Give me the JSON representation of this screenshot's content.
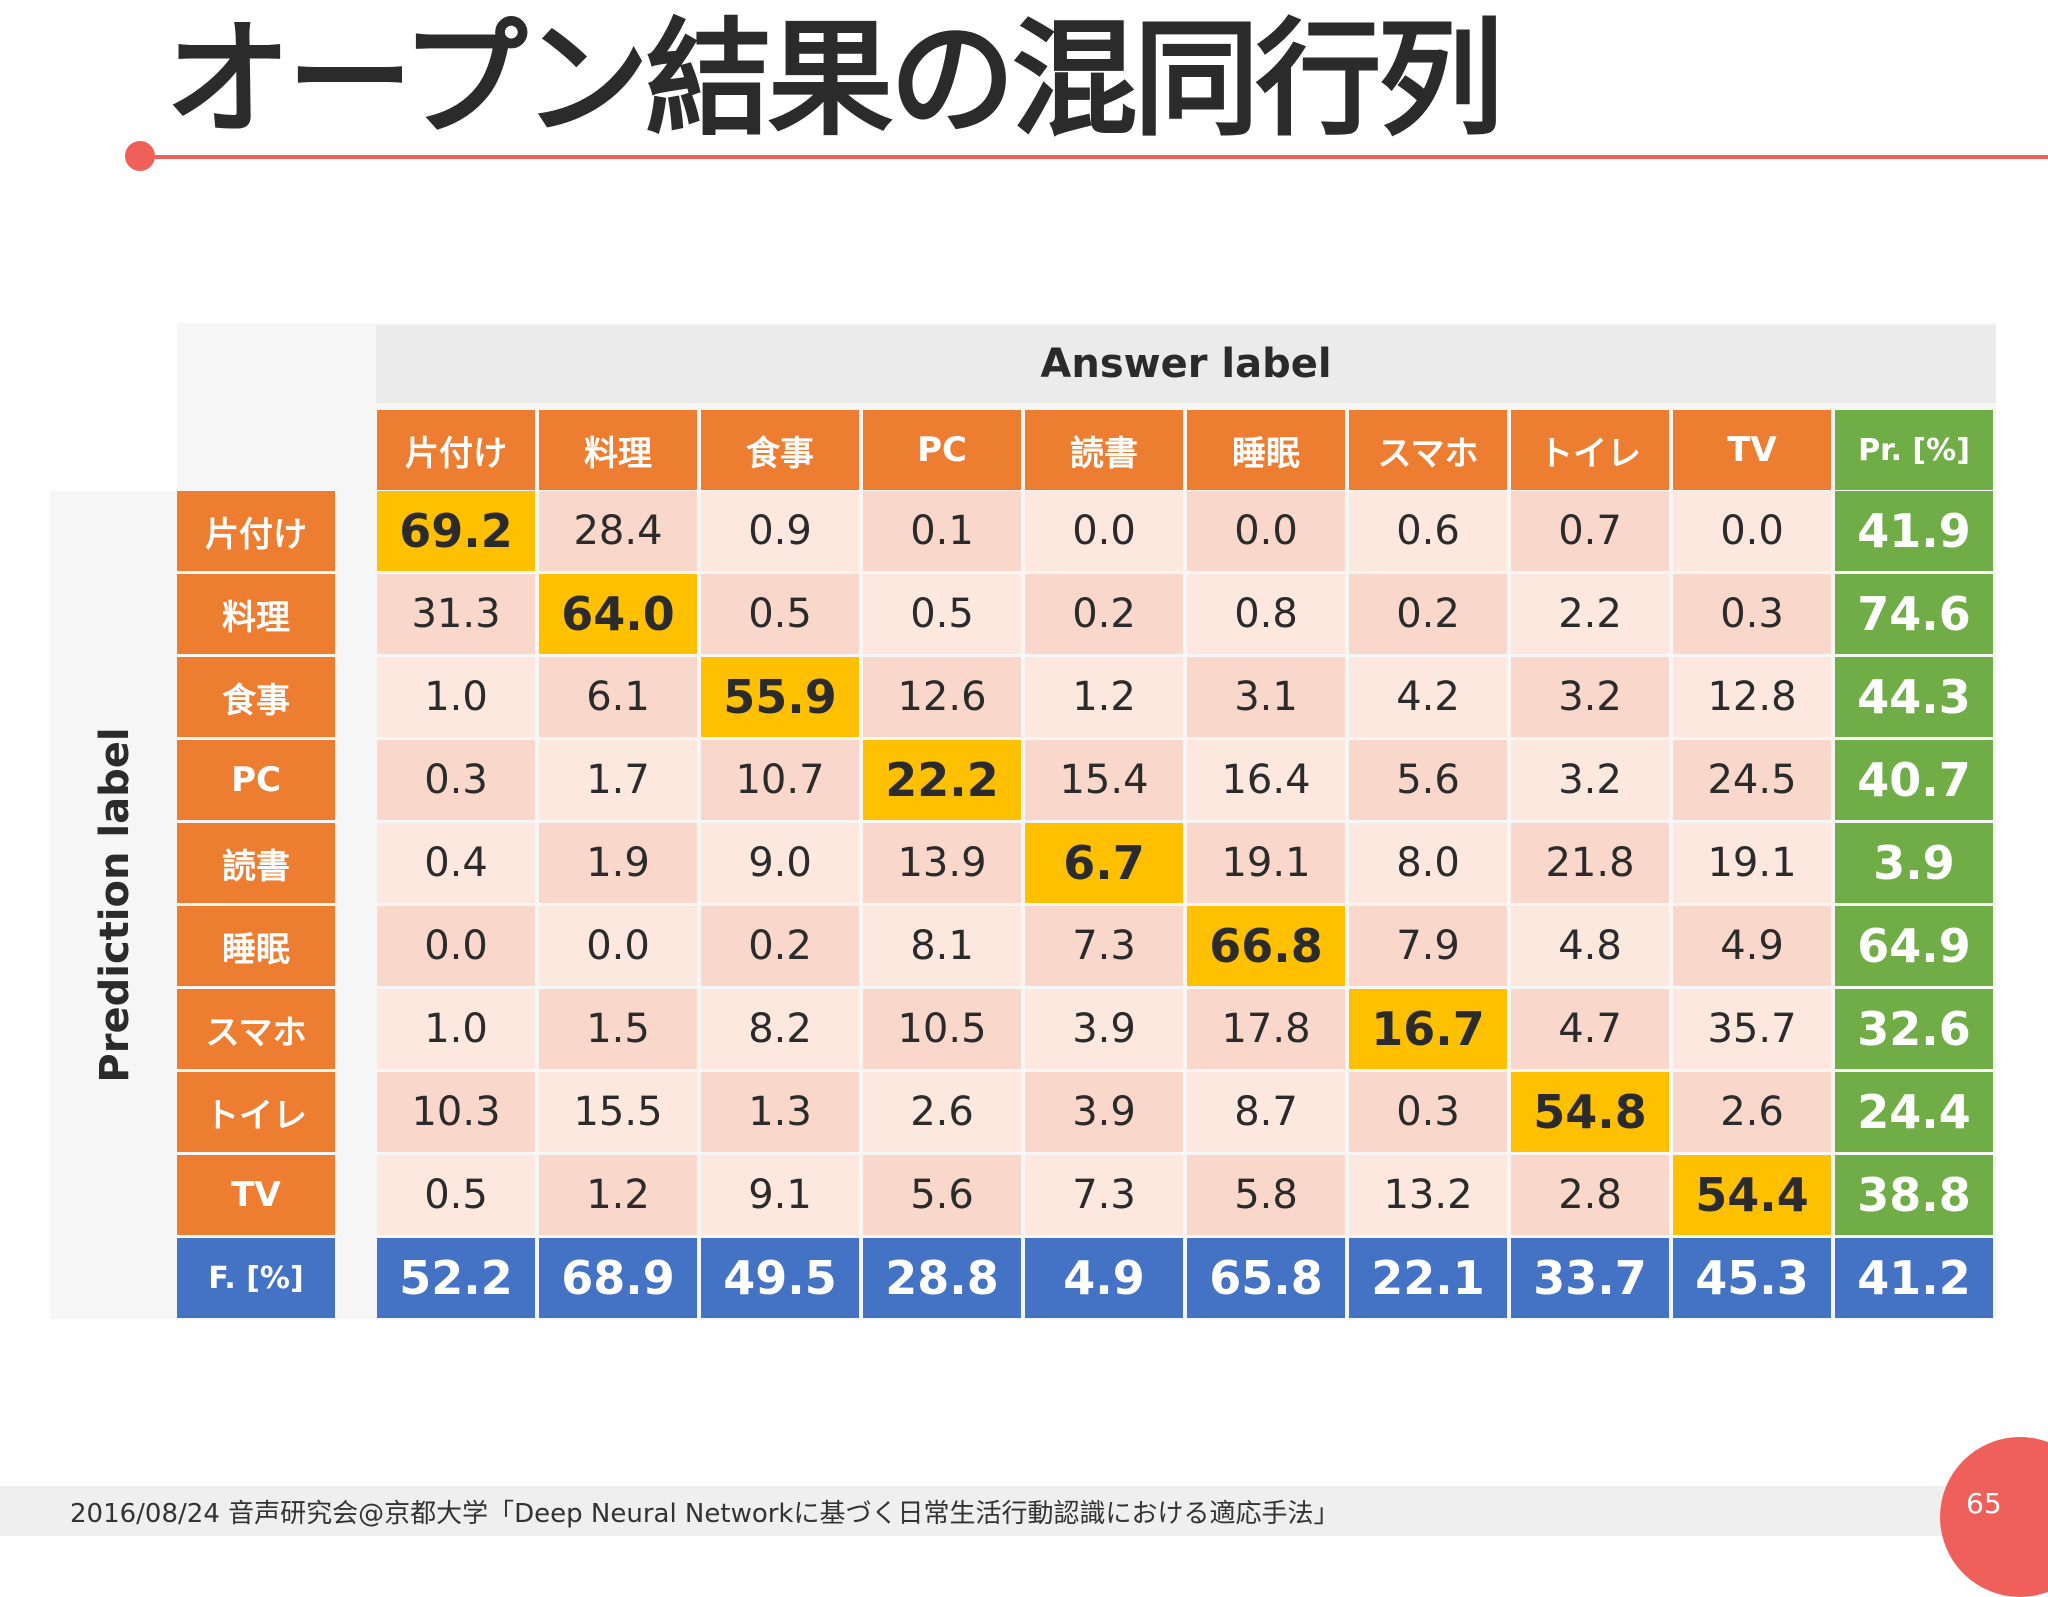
{
  "slide": {
    "title": "オープン結果の混同行列",
    "answer_label": "Answer label",
    "prediction_label": "Prediction label",
    "footer": "2016/08/24  音声研究会@京都大学「Deep Neural Networkに基づく日常生活行動認識における適応手法」",
    "page_number": "65"
  },
  "colors": {
    "accent": "#f0605a",
    "header_orange": "#ed7d31",
    "diagonal_gold": "#ffc000",
    "precision_green": "#70ad47",
    "fscore_blue": "#4472c4"
  },
  "chart_data": {
    "type": "table",
    "title": "オープン結果の混同行列",
    "column_axis_label": "Answer label",
    "row_axis_label": "Prediction label",
    "columns": [
      "片付け",
      "料理",
      "食事",
      "PC",
      "読書",
      "睡眠",
      "スマホ",
      "トイレ",
      "TV"
    ],
    "precision_header": "Pr. [%]",
    "fscore_header": "F. [%]",
    "rows": [
      {
        "label": "片付け",
        "values": [
          "69.2",
          "28.4",
          "0.9",
          "0.1",
          "0.0",
          "0.0",
          "0.6",
          "0.7",
          "0.0"
        ],
        "precision": "41.9"
      },
      {
        "label": "料理",
        "values": [
          "31.3",
          "64.0",
          "0.5",
          "0.5",
          "0.2",
          "0.8",
          "0.2",
          "2.2",
          "0.3"
        ],
        "precision": "74.6"
      },
      {
        "label": "食事",
        "values": [
          "1.0",
          "6.1",
          "55.9",
          "12.6",
          "1.2",
          "3.1",
          "4.2",
          "3.2",
          "12.8"
        ],
        "precision": "44.3"
      },
      {
        "label": "PC",
        "values": [
          "0.3",
          "1.7",
          "10.7",
          "22.2",
          "15.4",
          "16.4",
          "5.6",
          "3.2",
          "24.5"
        ],
        "precision": "40.7"
      },
      {
        "label": "読書",
        "values": [
          "0.4",
          "1.9",
          "9.0",
          "13.9",
          "6.7",
          "19.1",
          "8.0",
          "21.8",
          "19.1"
        ],
        "precision": "3.9"
      },
      {
        "label": "睡眠",
        "values": [
          "0.0",
          "0.0",
          "0.2",
          "8.1",
          "7.3",
          "66.8",
          "7.9",
          "4.8",
          "4.9"
        ],
        "precision": "64.9"
      },
      {
        "label": "スマホ",
        "values": [
          "1.0",
          "1.5",
          "8.2",
          "10.5",
          "3.9",
          "17.8",
          "16.7",
          "4.7",
          "35.7"
        ],
        "precision": "32.6"
      },
      {
        "label": "トイレ",
        "values": [
          "10.3",
          "15.5",
          "1.3",
          "2.6",
          "3.9",
          "8.7",
          "0.3",
          "54.8",
          "2.6"
        ],
        "precision": "24.4"
      },
      {
        "label": "TV",
        "values": [
          "0.5",
          "1.2",
          "9.1",
          "5.6",
          "7.3",
          "5.8",
          "13.2",
          "2.8",
          "54.4"
        ],
        "precision": "38.8"
      }
    ],
    "fscores": [
      "52.2",
      "68.9",
      "49.5",
      "28.8",
      "4.9",
      "65.8",
      "22.1",
      "33.7",
      "45.3"
    ],
    "overall": "41.2"
  }
}
